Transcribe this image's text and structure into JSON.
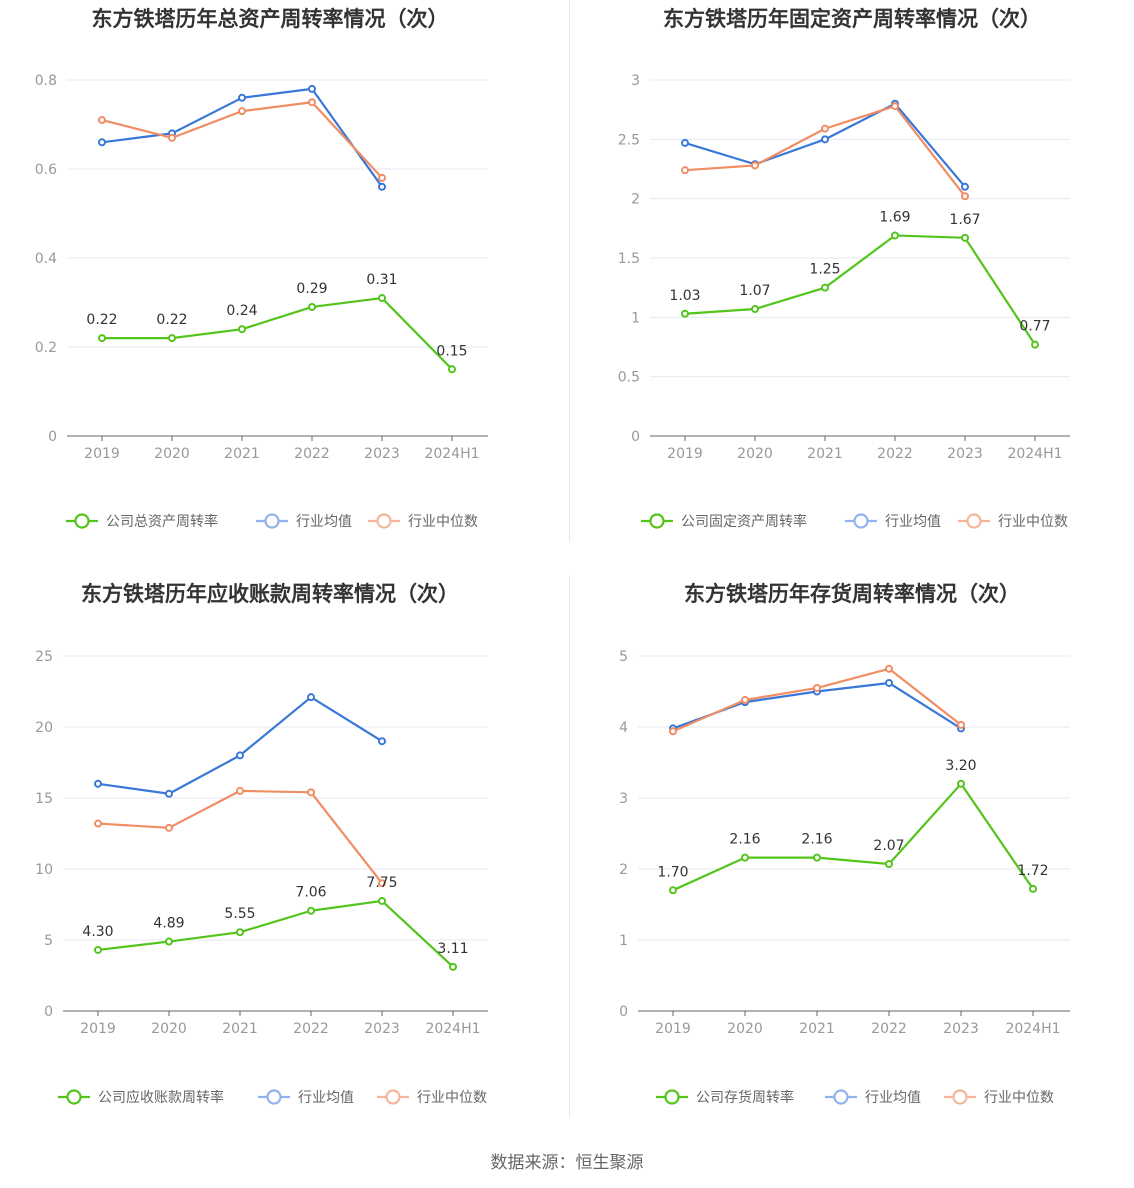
{
  "colors": {
    "company": "#52c41a",
    "avg": "#3a78d8",
    "median": "#f08d64"
  },
  "legend_colors": {
    "company": "#52c41a",
    "avg": "#8fb3ec",
    "median": "#f6b59a"
  },
  "source": "数据来源：恒生聚源",
  "chart_data": [
    {
      "type": "line",
      "title": "东方铁塔历年总资产周转率情况（次）",
      "categories": [
        "2019",
        "2020",
        "2021",
        "2022",
        "2023",
        "2024H1"
      ],
      "ylim": [
        0,
        0.8
      ],
      "yticks": [
        "0",
        "0.2",
        "0.4",
        "0.6",
        "0.8"
      ],
      "ytick_values": [
        0,
        0.2,
        0.4,
        0.6,
        0.8
      ],
      "grid": true,
      "legend_position": "bottom",
      "series": [
        {
          "name": "公司总资产周转率",
          "key": "company",
          "values": [
            0.22,
            0.22,
            0.24,
            0.29,
            0.31,
            0.15
          ],
          "labels": [
            "0.22",
            "0.22",
            "0.24",
            "0.29",
            "0.31",
            "0.15"
          ]
        },
        {
          "name": "行业均值",
          "key": "avg",
          "values": [
            0.66,
            0.68,
            0.76,
            0.78,
            0.56,
            null
          ]
        },
        {
          "name": "行业中位数",
          "key": "median",
          "values": [
            0.71,
            0.67,
            0.73,
            0.75,
            0.58,
            null
          ]
        }
      ]
    },
    {
      "type": "line",
      "title": "东方铁塔历年固定资产周转率情况（次）",
      "categories": [
        "2019",
        "2020",
        "2021",
        "2022",
        "2023",
        "2024H1"
      ],
      "ylim": [
        0,
        3
      ],
      "yticks": [
        "0",
        "0.5",
        "1",
        "1.5",
        "2",
        "2.5",
        "3"
      ],
      "ytick_values": [
        0,
        0.5,
        1,
        1.5,
        2,
        2.5,
        3
      ],
      "grid": true,
      "legend_position": "bottom",
      "series": [
        {
          "name": "公司固定资产周转率",
          "key": "company",
          "values": [
            1.03,
            1.07,
            1.25,
            1.69,
            1.67,
            0.77
          ],
          "labels": [
            "1.03",
            "1.07",
            "1.25",
            "1.69",
            "1.67",
            "0.77"
          ]
        },
        {
          "name": "行业均值",
          "key": "avg",
          "values": [
            2.47,
            2.29,
            2.5,
            2.8,
            2.1,
            null
          ]
        },
        {
          "name": "行业中位数",
          "key": "median",
          "values": [
            2.24,
            2.28,
            2.59,
            2.78,
            2.02,
            null
          ]
        }
      ]
    },
    {
      "type": "line",
      "title": "东方铁塔历年应收账款周转率情况（次）",
      "categories": [
        "2019",
        "2020",
        "2021",
        "2022",
        "2023",
        "2024H1"
      ],
      "ylim": [
        0,
        25
      ],
      "yticks": [
        "0",
        "5",
        "10",
        "15",
        "20",
        "25"
      ],
      "ytick_values": [
        0,
        5,
        10,
        15,
        20,
        25
      ],
      "grid": true,
      "legend_position": "bottom",
      "series": [
        {
          "name": "公司应收账款周转率",
          "key": "company",
          "values": [
            4.3,
            4.89,
            5.55,
            7.06,
            7.75,
            3.11
          ],
          "labels": [
            "4.30",
            "4.89",
            "5.55",
            "7.06",
            "7.75",
            "3.11"
          ]
        },
        {
          "name": "行业均值",
          "key": "avg",
          "values": [
            16.0,
            15.3,
            18.0,
            22.1,
            19.0,
            null
          ]
        },
        {
          "name": "行业中位数",
          "key": "median",
          "values": [
            13.2,
            12.9,
            15.5,
            15.4,
            9.0,
            null
          ]
        }
      ]
    },
    {
      "type": "line",
      "title": "东方铁塔历年存货周转率情况（次）",
      "categories": [
        "2019",
        "2020",
        "2021",
        "2022",
        "2023",
        "2024H1"
      ],
      "ylim": [
        0,
        5
      ],
      "yticks": [
        "0",
        "1",
        "2",
        "3",
        "4",
        "5"
      ],
      "ytick_values": [
        0,
        1,
        2,
        3,
        4,
        5
      ],
      "grid": true,
      "legend_position": "bottom",
      "series": [
        {
          "name": "公司存货周转率",
          "key": "company",
          "values": [
            1.7,
            2.16,
            2.16,
            2.07,
            3.2,
            1.72
          ],
          "labels": [
            "1.70",
            "2.16",
            "2.16",
            "2.07",
            "3.20",
            "1.72"
          ]
        },
        {
          "name": "行业均值",
          "key": "avg",
          "values": [
            3.98,
            4.35,
            4.5,
            4.62,
            3.98,
            null
          ]
        },
        {
          "name": "行业中位数",
          "key": "median",
          "values": [
            3.94,
            4.38,
            4.55,
            4.82,
            4.03,
            null
          ]
        }
      ]
    }
  ]
}
